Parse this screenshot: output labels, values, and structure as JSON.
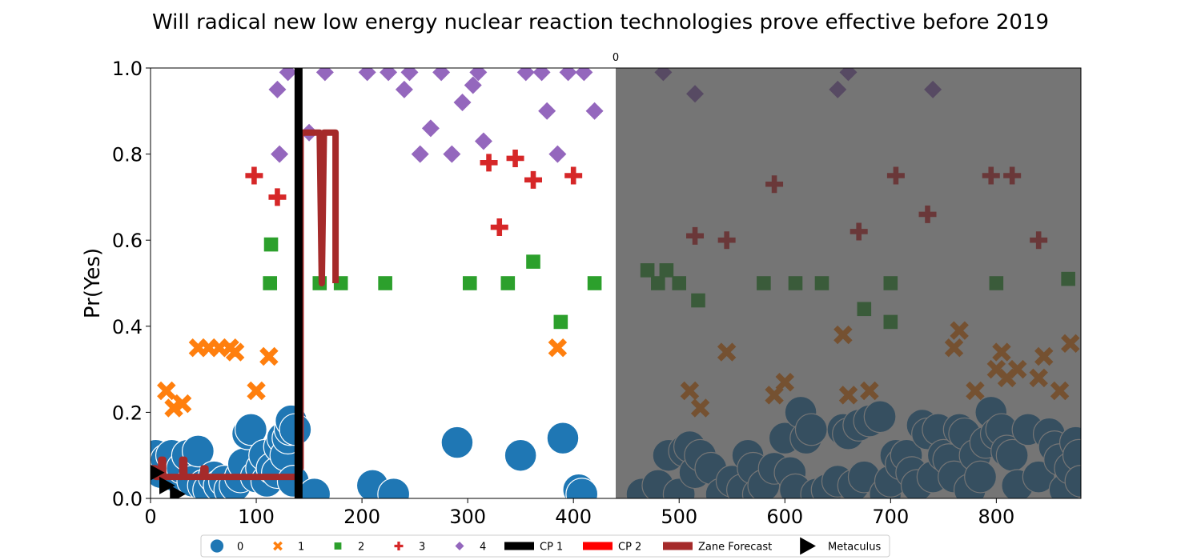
{
  "chart_data": {
    "type": "scatter",
    "title": "Will radical new  low energy nuclear reaction  technologies prove effective before 2019",
    "xlabel": "",
    "ylabel": "Pr(Yes)",
    "xlim": [
      0,
      880
    ],
    "ylim": [
      0,
      1.0
    ],
    "x_ticks": [
      0,
      100,
      200,
      300,
      400,
      500,
      600,
      700,
      800
    ],
    "y_ticks": [
      0.0,
      0.2,
      0.4,
      0.6,
      0.8,
      1.0
    ],
    "y_tick_labels": [
      "0.0",
      "0.2",
      "0.4",
      "0.6",
      "0.8",
      "1.0"
    ],
    "shaded_region": {
      "x_start": 440,
      "x_end": 880,
      "label": "0",
      "color": "#404040"
    },
    "vertical_lines": [
      {
        "name": "CP 1",
        "x": 140,
        "color": "#000000"
      }
    ],
    "colors": {
      "0": "#1f77b4",
      "1": "#ff7f0e",
      "2": "#2ca02c",
      "3": "#d62728",
      "4": "#9467bd",
      "zane": "#a52a2a",
      "metaculus": "#000000",
      "cp2": "#ff0000"
    },
    "series": [
      {
        "name": "0",
        "marker": "circle",
        "color": "#1f77b4",
        "points": [
          [
            5,
            0.1
          ],
          [
            10,
            0.06
          ],
          [
            15,
            0.09
          ],
          [
            20,
            0.1
          ],
          [
            25,
            0.05
          ],
          [
            30,
            0.07
          ],
          [
            35,
            0.1
          ],
          [
            40,
            0.04
          ],
          [
            45,
            0.11
          ],
          [
            50,
            0.03
          ],
          [
            55,
            0.02
          ],
          [
            60,
            0.05
          ],
          [
            65,
            0.03
          ],
          [
            70,
            0.04
          ],
          [
            75,
            0.02
          ],
          [
            80,
            0.03
          ],
          [
            85,
            0.05
          ],
          [
            88,
            0.08
          ],
          [
            92,
            0.15
          ],
          [
            95,
            0.16
          ],
          [
            100,
            0.05
          ],
          [
            105,
            0.07
          ],
          [
            108,
            0.1
          ],
          [
            110,
            0.04
          ],
          [
            115,
            0.07
          ],
          [
            120,
            0.06
          ],
          [
            122,
            0.12
          ],
          [
            125,
            0.14
          ],
          [
            128,
            0.1
          ],
          [
            130,
            0.14
          ],
          [
            132,
            0.16
          ],
          [
            133,
            0.18
          ],
          [
            135,
            0.04
          ],
          [
            137,
            0.16
          ],
          [
            155,
            0.01
          ],
          [
            210,
            0.03
          ],
          [
            230,
            0.01
          ],
          [
            290,
            0.13
          ],
          [
            350,
            0.1
          ],
          [
            390,
            0.14
          ],
          [
            405,
            0.02
          ],
          [
            408,
            0.01
          ],
          [
            465,
            0.01
          ],
          [
            480,
            0.03
          ],
          [
            490,
            0.1
          ],
          [
            500,
            0.01
          ],
          [
            505,
            0.11
          ],
          [
            510,
            0.12
          ],
          [
            515,
            0.06
          ],
          [
            520,
            0.1
          ],
          [
            530,
            0.07
          ],
          [
            540,
            0.01
          ],
          [
            550,
            0.04
          ],
          [
            560,
            0.02
          ],
          [
            565,
            0.1
          ],
          [
            570,
            0.07
          ],
          [
            575,
            0.01
          ],
          [
            580,
            0.03
          ],
          [
            590,
            0.07
          ],
          [
            600,
            0.14
          ],
          [
            605,
            0.06
          ],
          [
            610,
            0.02
          ],
          [
            615,
            0.2
          ],
          [
            620,
            0.14
          ],
          [
            625,
            0.16
          ],
          [
            630,
            0.01
          ],
          [
            640,
            0.02
          ],
          [
            650,
            0.04
          ],
          [
            655,
            0.16
          ],
          [
            660,
            0.15
          ],
          [
            665,
            0.03
          ],
          [
            670,
            0.17
          ],
          [
            675,
            0.05
          ],
          [
            680,
            0.18
          ],
          [
            690,
            0.19
          ],
          [
            695,
            0.01
          ],
          [
            700,
            0.04
          ],
          [
            705,
            0.1
          ],
          [
            710,
            0.08
          ],
          [
            715,
            0.1
          ],
          [
            720,
            0.06
          ],
          [
            725,
            0.03
          ],
          [
            730,
            0.17
          ],
          [
            735,
            0.15
          ],
          [
            740,
            0.05
          ],
          [
            745,
            0.16
          ],
          [
            750,
            0.1
          ],
          [
            755,
            0.09
          ],
          [
            760,
            0.05
          ],
          [
            765,
            0.16
          ],
          [
            770,
            0.15
          ],
          [
            775,
            0.02
          ],
          [
            780,
            0.1
          ],
          [
            785,
            0.05
          ],
          [
            790,
            0.13
          ],
          [
            795,
            0.2
          ],
          [
            800,
            0.15
          ],
          [
            805,
            0.16
          ],
          [
            810,
            0.11
          ],
          [
            815,
            0.1
          ],
          [
            820,
            0.03
          ],
          [
            830,
            0.16
          ],
          [
            840,
            0.05
          ],
          [
            850,
            0.15
          ],
          [
            855,
            0.12
          ],
          [
            860,
            0.09
          ],
          [
            865,
            0.02
          ],
          [
            870,
            0.07
          ],
          [
            875,
            0.13
          ],
          [
            878,
            0.1
          ],
          [
            880,
            0.04
          ]
        ]
      },
      {
        "name": "1",
        "marker": "x",
        "color": "#ff7f0e",
        "points": [
          [
            15,
            0.25
          ],
          [
            22,
            0.21
          ],
          [
            30,
            0.22
          ],
          [
            45,
            0.35
          ],
          [
            55,
            0.35
          ],
          [
            65,
            0.35
          ],
          [
            75,
            0.35
          ],
          [
            80,
            0.34
          ],
          [
            100,
            0.25
          ],
          [
            112,
            0.33
          ],
          [
            385,
            0.35
          ],
          [
            510,
            0.25
          ],
          [
            520,
            0.21
          ],
          [
            545,
            0.34
          ],
          [
            590,
            0.24
          ],
          [
            600,
            0.27
          ],
          [
            655,
            0.38
          ],
          [
            660,
            0.24
          ],
          [
            680,
            0.25
          ],
          [
            760,
            0.35
          ],
          [
            765,
            0.39
          ],
          [
            780,
            0.25
          ],
          [
            800,
            0.3
          ],
          [
            805,
            0.34
          ],
          [
            810,
            0.28
          ],
          [
            820,
            0.3
          ],
          [
            840,
            0.28
          ],
          [
            845,
            0.33
          ],
          [
            860,
            0.25
          ],
          [
            870,
            0.36
          ]
        ]
      },
      {
        "name": "2",
        "marker": "square",
        "color": "#2ca02c",
        "points": [
          [
            113,
            0.5
          ],
          [
            114,
            0.59
          ],
          [
            160,
            0.5
          ],
          [
            180,
            0.5
          ],
          [
            222,
            0.5
          ],
          [
            302,
            0.5
          ],
          [
            338,
            0.5
          ],
          [
            362,
            0.55
          ],
          [
            388,
            0.41
          ],
          [
            420,
            0.5
          ],
          [
            470,
            0.53
          ],
          [
            480,
            0.5
          ],
          [
            488,
            0.53
          ],
          [
            500,
            0.5
          ],
          [
            518,
            0.46
          ],
          [
            580,
            0.5
          ],
          [
            610,
            0.5
          ],
          [
            635,
            0.5
          ],
          [
            675,
            0.44
          ],
          [
            700,
            0.5
          ],
          [
            700,
            0.41
          ],
          [
            800,
            0.5
          ],
          [
            868,
            0.51
          ]
        ]
      },
      {
        "name": "3",
        "marker": "plus",
        "color": "#d62728",
        "points": [
          [
            98,
            0.75
          ],
          [
            120,
            0.7
          ],
          [
            320,
            0.78
          ],
          [
            330,
            0.63
          ],
          [
            345,
            0.79
          ],
          [
            362,
            0.74
          ],
          [
            400,
            0.75
          ],
          [
            515,
            0.61
          ],
          [
            545,
            0.6
          ],
          [
            590,
            0.73
          ],
          [
            670,
            0.62
          ],
          [
            705,
            0.75
          ],
          [
            735,
            0.66
          ],
          [
            795,
            0.75
          ],
          [
            815,
            0.75
          ],
          [
            840,
            0.6
          ]
        ]
      },
      {
        "name": "4",
        "marker": "diamond",
        "color": "#9467bd",
        "points": [
          [
            120,
            0.95
          ],
          [
            122,
            0.8
          ],
          [
            130,
            0.99
          ],
          [
            150,
            0.85
          ],
          [
            165,
            0.99
          ],
          [
            205,
            0.99
          ],
          [
            225,
            0.99
          ],
          [
            240,
            0.95
          ],
          [
            245,
            0.99
          ],
          [
            255,
            0.8
          ],
          [
            265,
            0.86
          ],
          [
            275,
            0.99
          ],
          [
            285,
            0.8
          ],
          [
            295,
            0.92
          ],
          [
            305,
            0.96
          ],
          [
            310,
            0.99
          ],
          [
            315,
            0.83
          ],
          [
            355,
            0.99
          ],
          [
            370,
            0.99
          ],
          [
            375,
            0.9
          ],
          [
            385,
            0.8
          ],
          [
            395,
            0.99
          ],
          [
            410,
            0.99
          ],
          [
            420,
            0.9
          ],
          [
            485,
            0.99
          ],
          [
            515,
            0.94
          ],
          [
            650,
            0.95
          ],
          [
            660,
            0.99
          ],
          [
            740,
            0.95
          ]
        ]
      }
    ],
    "zane_forecast": {
      "name": "Zane Forecast",
      "points": [
        [
          0,
          0.07
        ],
        [
          5,
          0.07
        ],
        [
          5,
          0.05
        ],
        [
          10,
          0.05
        ],
        [
          10,
          0.09
        ],
        [
          12,
          0.09
        ],
        [
          12,
          0.05
        ],
        [
          30,
          0.05
        ],
        [
          30,
          0.09
        ],
        [
          32,
          0.09
        ],
        [
          32,
          0.05
        ],
        [
          50,
          0.05
        ],
        [
          50,
          0.07
        ],
        [
          52,
          0.07
        ],
        [
          52,
          0.05
        ],
        [
          140,
          0.05
        ],
        [
          140,
          0.07
        ],
        [
          142,
          0.07
        ],
        [
          142,
          0.85
        ],
        [
          155,
          0.85
        ],
        [
          160,
          0.85
        ],
        [
          162,
          0.5
        ],
        [
          164,
          0.85
        ],
        [
          172,
          0.85
        ],
        [
          175,
          0.85
        ],
        [
          175,
          0.5
        ]
      ]
    },
    "metaculus": {
      "name": "Metaculus",
      "points": [
        [
          5,
          0.06
        ],
        [
          15,
          0.03
        ],
        [
          25,
          0.01
        ]
      ]
    },
    "legend": {
      "placement": "bottom-center",
      "entries": [
        {
          "label": "0",
          "marker": "circle",
          "color": "#1f77b4"
        },
        {
          "label": "1",
          "marker": "x",
          "color": "#ff7f0e"
        },
        {
          "label": "2",
          "marker": "square",
          "color": "#2ca02c"
        },
        {
          "label": "3",
          "marker": "plus",
          "color": "#d62728"
        },
        {
          "label": "4",
          "marker": "diamond",
          "color": "#9467bd"
        },
        {
          "label": "CP 1",
          "marker": "bar",
          "color": "#000000"
        },
        {
          "label": "CP 2",
          "marker": "bar",
          "color": "#ff0000"
        },
        {
          "label": "Zane Forecast",
          "marker": "bar",
          "color": "#a52a2a"
        },
        {
          "label": "Metaculus",
          "marker": "triangle",
          "color": "#000000"
        }
      ]
    }
  }
}
